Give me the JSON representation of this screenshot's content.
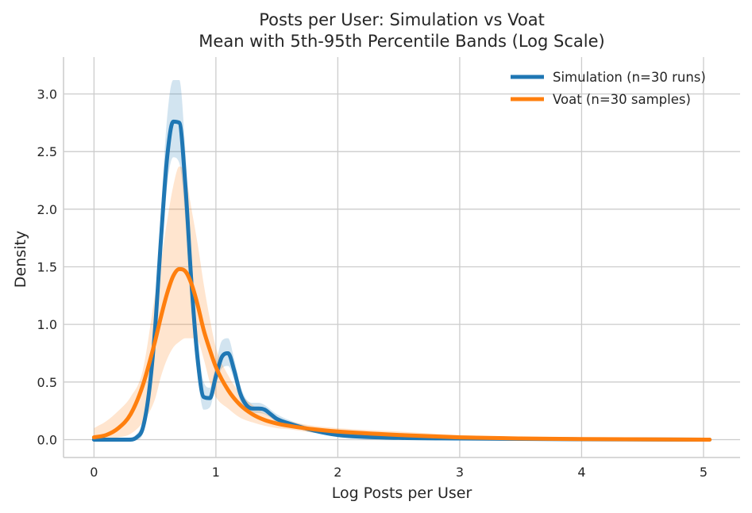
{
  "chart_data": {
    "type": "line",
    "title": "Posts per User: Simulation vs Voat",
    "subtitle": "Mean with 5th-95th Percentile Bands (Log Scale)",
    "xlabel": "Log Posts per User",
    "ylabel": "Density",
    "xlim": [
      -0.25,
      5.3
    ],
    "ylim": [
      -0.155,
      3.32
    ],
    "xticks": [
      0,
      1,
      2,
      3,
      4,
      5
    ],
    "xtick_labels": [
      "0",
      "1",
      "2",
      "3",
      "4",
      "5"
    ],
    "yticks": [
      0.0,
      0.5,
      1.0,
      1.5,
      2.0,
      2.5,
      3.0
    ],
    "ytick_labels": [
      "0.0",
      "0.5",
      "1.0",
      "1.5",
      "2.0",
      "2.5",
      "3.0"
    ],
    "grid": true,
    "legend_position": "top-right",
    "series": [
      {
        "name": "Simulation (n=30 runs)",
        "color": "#1f77b4",
        "band_color": "#1f77b4",
        "x": [
          0,
          0.3,
          0.35,
          0.4,
          0.45,
          0.5,
          0.55,
          0.6,
          0.65,
          0.7,
          0.75,
          0.8,
          0.85,
          0.9,
          0.95,
          1.0,
          1.05,
          1.1,
          1.15,
          1.2,
          1.25,
          1.3,
          1.35,
          1.4,
          1.45,
          1.5,
          1.6,
          1.8,
          2.0,
          2.5,
          3.0,
          4.0,
          5.05
        ],
        "values": [
          0,
          0.0,
          0.02,
          0.1,
          0.4,
          0.95,
          1.75,
          2.45,
          2.76,
          2.75,
          2.2,
          1.35,
          0.7,
          0.37,
          0.36,
          0.55,
          0.72,
          0.75,
          0.6,
          0.4,
          0.3,
          0.27,
          0.27,
          0.26,
          0.22,
          0.18,
          0.14,
          0.08,
          0.04,
          0.015,
          0.01,
          0.003,
          0.0
        ],
        "lower": [
          0,
          0.0,
          0.0,
          0.05,
          0.3,
          0.75,
          1.5,
          2.2,
          2.45,
          2.4,
          1.9,
          1.1,
          0.55,
          0.26,
          0.28,
          0.47,
          0.62,
          0.64,
          0.52,
          0.34,
          0.25,
          0.23,
          0.23,
          0.22,
          0.19,
          0.15,
          0.12,
          0.06,
          0.03,
          0.01,
          0.005,
          0.001,
          0.0
        ],
        "upper": [
          0,
          0.02,
          0.05,
          0.15,
          0.5,
          1.15,
          2.0,
          2.8,
          3.12,
          3.12,
          2.5,
          1.6,
          0.9,
          0.5,
          0.45,
          0.66,
          0.86,
          0.88,
          0.7,
          0.47,
          0.35,
          0.32,
          0.32,
          0.3,
          0.26,
          0.22,
          0.17,
          0.1,
          0.05,
          0.02,
          0.012,
          0.005,
          0.001
        ]
      },
      {
        "name": "Voat (n=30 samples)",
        "color": "#ff7f0e",
        "band_color": "#ff7f0e",
        "x": [
          0,
          0.1,
          0.2,
          0.3,
          0.4,
          0.5,
          0.55,
          0.6,
          0.65,
          0.7,
          0.75,
          0.8,
          0.85,
          0.9,
          0.95,
          1.0,
          1.1,
          1.2,
          1.3,
          1.4,
          1.5,
          1.6,
          1.8,
          2.0,
          2.5,
          3.0,
          3.5,
          4.0,
          5.05
        ],
        "values": [
          0.02,
          0.04,
          0.1,
          0.22,
          0.47,
          0.85,
          1.07,
          1.27,
          1.42,
          1.48,
          1.46,
          1.35,
          1.17,
          0.95,
          0.78,
          0.63,
          0.43,
          0.3,
          0.22,
          0.17,
          0.14,
          0.12,
          0.09,
          0.07,
          0.04,
          0.02,
          0.01,
          0.005,
          0.0
        ],
        "lower": [
          0.0,
          0.01,
          0.02,
          0.05,
          0.15,
          0.35,
          0.55,
          0.7,
          0.8,
          0.85,
          0.88,
          0.88,
          0.86,
          0.7,
          0.5,
          0.37,
          0.27,
          0.19,
          0.15,
          0.12,
          0.1,
          0.09,
          0.06,
          0.04,
          0.02,
          0.01,
          0.003,
          0.001,
          0.0
        ],
        "upper": [
          0.1,
          0.16,
          0.25,
          0.37,
          0.6,
          1.25,
          1.55,
          1.9,
          2.2,
          2.37,
          2.3,
          2.0,
          1.7,
          1.35,
          1.05,
          0.8,
          0.56,
          0.4,
          0.3,
          0.23,
          0.19,
          0.16,
          0.12,
          0.1,
          0.07,
          0.04,
          0.02,
          0.01,
          0.003
        ]
      }
    ]
  }
}
